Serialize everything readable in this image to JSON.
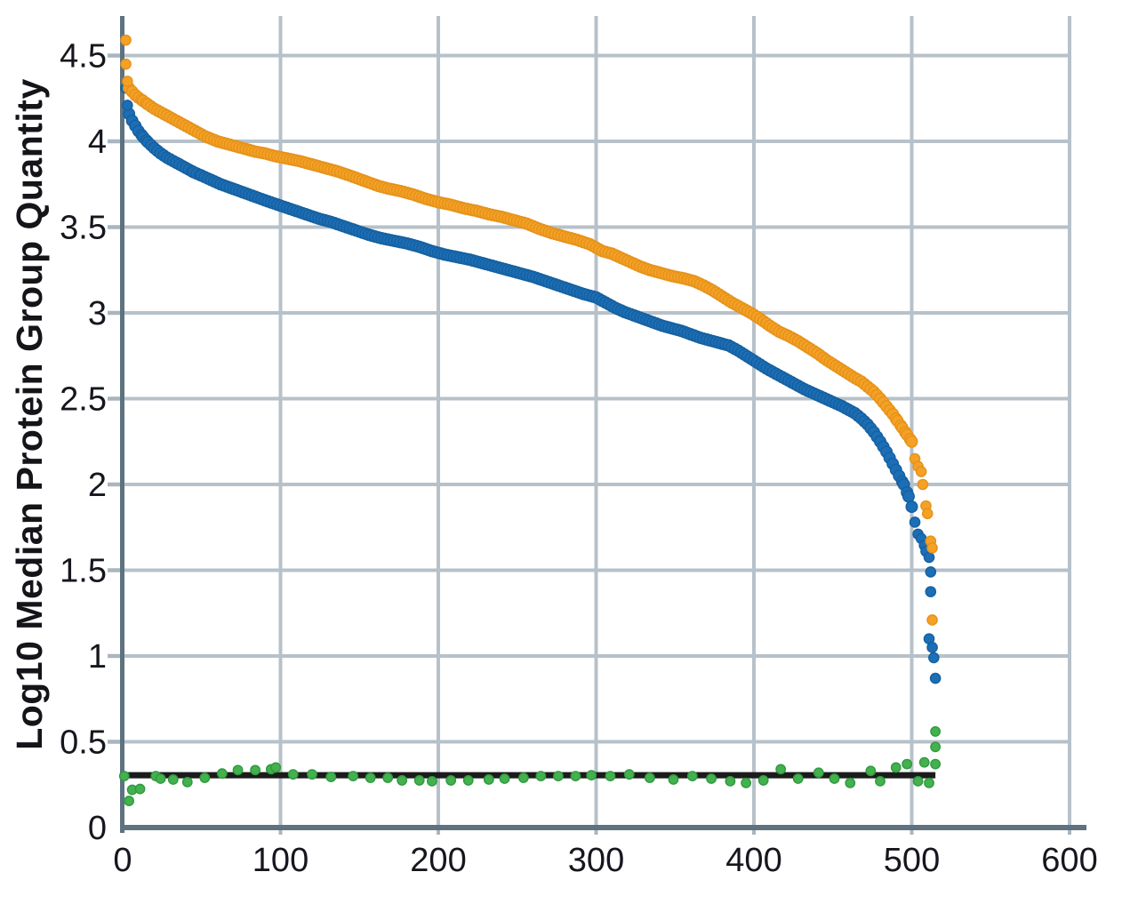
{
  "chart_data": {
    "type": "scatter",
    "title": "",
    "xlabel": "",
    "ylabel": "Log10 Median Protein Group Quantity",
    "xlim": [
      0,
      612
    ],
    "ylim": [
      0,
      4.73
    ],
    "grid": true,
    "legend": "none",
    "x_ticks": {
      "values": [
        0,
        100,
        200,
        300,
        400,
        500,
        600
      ],
      "labels": [
        "0",
        "100",
        "200",
        "300",
        "400",
        "500",
        "600"
      ]
    },
    "y_ticks": {
      "values": [
        0,
        0.5,
        1,
        1.5,
        2,
        2.5,
        3,
        3.5,
        4,
        4.5
      ],
      "labels": [
        "0",
        "0.5",
        "1",
        "1.5",
        "2",
        "2.5",
        "3",
        "3.5",
        "4",
        "4.5"
      ]
    },
    "colors": {
      "orange": "#F4A125",
      "orange_edge": "#E5921A",
      "blue": "#1C6EB6",
      "blue_edge": "#15609F",
      "green": "#44B14E",
      "green_edge": "#2E9A40",
      "reference_line": "#1B1B1B",
      "grid_line": "#B7C1C9",
      "tick_mark": "#A9B6BF",
      "axis_line": "#5E7280",
      "text": "#16161E"
    },
    "reference_line": {
      "y": 0.305,
      "x_start": 0,
      "x_end": 515
    },
    "series": [
      {
        "name": "orange-curve",
        "curve": [
          [
            4,
            4.31
          ],
          [
            6,
            4.29
          ],
          [
            8,
            4.27
          ],
          [
            10,
            4.255
          ],
          [
            13,
            4.235
          ],
          [
            16,
            4.215
          ],
          [
            20,
            4.19
          ],
          [
            24,
            4.17
          ],
          [
            28,
            4.15
          ],
          [
            32,
            4.13
          ],
          [
            36,
            4.11
          ],
          [
            40,
            4.09
          ],
          [
            44,
            4.07
          ],
          [
            48,
            4.05
          ],
          [
            52,
            4.03
          ],
          [
            56,
            4.015
          ],
          [
            60,
            4.0
          ],
          [
            66,
            3.985
          ],
          [
            72,
            3.97
          ],
          [
            78,
            3.955
          ],
          [
            84,
            3.94
          ],
          [
            90,
            3.93
          ],
          [
            96,
            3.915
          ],
          [
            104,
            3.9
          ],
          [
            112,
            3.885
          ],
          [
            120,
            3.865
          ],
          [
            128,
            3.845
          ],
          [
            136,
            3.825
          ],
          [
            144,
            3.8
          ],
          [
            150,
            3.78
          ],
          [
            156,
            3.76
          ],
          [
            162,
            3.74
          ],
          [
            168,
            3.725
          ],
          [
            176,
            3.71
          ],
          [
            184,
            3.69
          ],
          [
            192,
            3.665
          ],
          [
            200,
            3.645
          ],
          [
            208,
            3.63
          ],
          [
            216,
            3.61
          ],
          [
            224,
            3.595
          ],
          [
            232,
            3.575
          ],
          [
            240,
            3.56
          ],
          [
            248,
            3.54
          ],
          [
            256,
            3.52
          ],
          [
            264,
            3.49
          ],
          [
            272,
            3.465
          ],
          [
            280,
            3.445
          ],
          [
            288,
            3.425
          ],
          [
            296,
            3.4
          ],
          [
            304,
            3.36
          ],
          [
            310,
            3.345
          ],
          [
            316,
            3.32
          ],
          [
            322,
            3.295
          ],
          [
            328,
            3.27
          ],
          [
            334,
            3.25
          ],
          [
            340,
            3.235
          ],
          [
            348,
            3.215
          ],
          [
            356,
            3.2
          ],
          [
            362,
            3.185
          ],
          [
            368,
            3.16
          ],
          [
            374,
            3.13
          ],
          [
            380,
            3.095
          ],
          [
            386,
            3.06
          ],
          [
            392,
            3.03
          ],
          [
            398,
            3.0
          ],
          [
            404,
            2.965
          ],
          [
            410,
            2.925
          ],
          [
            416,
            2.89
          ],
          [
            422,
            2.865
          ],
          [
            428,
            2.835
          ],
          [
            434,
            2.8
          ],
          [
            440,
            2.765
          ],
          [
            446,
            2.725
          ],
          [
            452,
            2.69
          ],
          [
            458,
            2.655
          ],
          [
            464,
            2.62
          ],
          [
            468,
            2.6
          ],
          [
            472,
            2.57
          ],
          [
            476,
            2.54
          ],
          [
            480,
            2.5
          ],
          [
            484,
            2.455
          ],
          [
            488,
            2.41
          ],
          [
            491,
            2.37
          ],
          [
            494,
            2.33
          ],
          [
            497,
            2.29
          ],
          [
            500,
            2.25
          ]
        ],
        "isolated": [
          [
            2,
            4.59
          ],
          [
            2,
            4.45
          ],
          [
            3,
            4.35
          ],
          [
            502,
            2.15
          ],
          [
            504,
            2.105
          ],
          [
            506,
            2.075
          ],
          [
            507,
            2.0
          ],
          [
            509,
            1.875
          ],
          [
            510,
            1.83
          ],
          [
            512,
            1.67
          ],
          [
            513,
            1.63
          ],
          [
            513,
            1.21
          ]
        ]
      },
      {
        "name": "blue-curve",
        "curve": [
          [
            4,
            4.16
          ],
          [
            6,
            4.12
          ],
          [
            8,
            4.09
          ],
          [
            10,
            4.06
          ],
          [
            13,
            4.025
          ],
          [
            16,
            3.995
          ],
          [
            20,
            3.96
          ],
          [
            24,
            3.93
          ],
          [
            28,
            3.905
          ],
          [
            32,
            3.885
          ],
          [
            36,
            3.865
          ],
          [
            40,
            3.845
          ],
          [
            45,
            3.82
          ],
          [
            50,
            3.8
          ],
          [
            56,
            3.775
          ],
          [
            62,
            3.75
          ],
          [
            68,
            3.73
          ],
          [
            74,
            3.71
          ],
          [
            80,
            3.69
          ],
          [
            86,
            3.67
          ],
          [
            92,
            3.65
          ],
          [
            100,
            3.625
          ],
          [
            108,
            3.6
          ],
          [
            116,
            3.575
          ],
          [
            124,
            3.55
          ],
          [
            132,
            3.53
          ],
          [
            140,
            3.505
          ],
          [
            148,
            3.48
          ],
          [
            156,
            3.455
          ],
          [
            164,
            3.435
          ],
          [
            172,
            3.42
          ],
          [
            180,
            3.405
          ],
          [
            188,
            3.385
          ],
          [
            196,
            3.36
          ],
          [
            204,
            3.34
          ],
          [
            212,
            3.325
          ],
          [
            220,
            3.31
          ],
          [
            228,
            3.29
          ],
          [
            236,
            3.27
          ],
          [
            244,
            3.25
          ],
          [
            252,
            3.23
          ],
          [
            260,
            3.21
          ],
          [
            268,
            3.185
          ],
          [
            276,
            3.16
          ],
          [
            284,
            3.135
          ],
          [
            292,
            3.11
          ],
          [
            300,
            3.09
          ],
          [
            306,
            3.06
          ],
          [
            312,
            3.03
          ],
          [
            318,
            3.005
          ],
          [
            324,
            2.985
          ],
          [
            330,
            2.965
          ],
          [
            336,
            2.945
          ],
          [
            342,
            2.925
          ],
          [
            348,
            2.91
          ],
          [
            354,
            2.895
          ],
          [
            360,
            2.875
          ],
          [
            366,
            2.855
          ],
          [
            372,
            2.84
          ],
          [
            378,
            2.825
          ],
          [
            384,
            2.81
          ],
          [
            390,
            2.78
          ],
          [
            396,
            2.745
          ],
          [
            402,
            2.71
          ],
          [
            408,
            2.675
          ],
          [
            414,
            2.645
          ],
          [
            420,
            2.615
          ],
          [
            426,
            2.585
          ],
          [
            432,
            2.555
          ],
          [
            438,
            2.53
          ],
          [
            444,
            2.505
          ],
          [
            450,
            2.48
          ],
          [
            456,
            2.455
          ],
          [
            460,
            2.435
          ],
          [
            464,
            2.415
          ],
          [
            468,
            2.385
          ],
          [
            472,
            2.35
          ],
          [
            476,
            2.305
          ],
          [
            480,
            2.25
          ],
          [
            484,
            2.19
          ],
          [
            488,
            2.12
          ],
          [
            492,
            2.05
          ],
          [
            495,
            2.0
          ],
          [
            498,
            1.93
          ],
          [
            500,
            1.87
          ]
        ],
        "isolated": [
          [
            2,
            4.31
          ],
          [
            3,
            4.21
          ],
          [
            502,
            1.78
          ],
          [
            504,
            1.71
          ],
          [
            506,
            1.685
          ],
          [
            508,
            1.645
          ],
          [
            509,
            1.61
          ],
          [
            511,
            1.575
          ],
          [
            512,
            1.49
          ],
          [
            512,
            1.375
          ],
          [
            511,
            1.1
          ],
          [
            513,
            1.05
          ],
          [
            514,
            0.99
          ],
          [
            515,
            0.87
          ]
        ]
      },
      {
        "name": "green-points",
        "points": [
          [
            1,
            0.3
          ],
          [
            4,
            0.155
          ],
          [
            6,
            0.22
          ],
          [
            11,
            0.225
          ],
          [
            21,
            0.3
          ],
          [
            24,
            0.285
          ],
          [
            32,
            0.28
          ],
          [
            41,
            0.265
          ],
          [
            52,
            0.29
          ],
          [
            63,
            0.315
          ],
          [
            73,
            0.335
          ],
          [
            84,
            0.335
          ],
          [
            94,
            0.34
          ],
          [
            97,
            0.35
          ],
          [
            108,
            0.31
          ],
          [
            120,
            0.31
          ],
          [
            132,
            0.295
          ],
          [
            146,
            0.3
          ],
          [
            157,
            0.29
          ],
          [
            168,
            0.29
          ],
          [
            177,
            0.275
          ],
          [
            188,
            0.275
          ],
          [
            196,
            0.27
          ],
          [
            208,
            0.275
          ],
          [
            219,
            0.275
          ],
          [
            232,
            0.28
          ],
          [
            242,
            0.285
          ],
          [
            254,
            0.29
          ],
          [
            265,
            0.3
          ],
          [
            276,
            0.3
          ],
          [
            287,
            0.3
          ],
          [
            297,
            0.305
          ],
          [
            309,
            0.3
          ],
          [
            321,
            0.31
          ],
          [
            334,
            0.29
          ],
          [
            349,
            0.28
          ],
          [
            361,
            0.3
          ],
          [
            373,
            0.285
          ],
          [
            385,
            0.27
          ],
          [
            395,
            0.26
          ],
          [
            406,
            0.275
          ],
          [
            417,
            0.34
          ],
          [
            428,
            0.285
          ],
          [
            441,
            0.32
          ],
          [
            451,
            0.285
          ],
          [
            461,
            0.26
          ],
          [
            474,
            0.33
          ],
          [
            480,
            0.27
          ],
          [
            490,
            0.35
          ],
          [
            497,
            0.37
          ],
          [
            504,
            0.27
          ],
          [
            508,
            0.38
          ],
          [
            511,
            0.26
          ],
          [
            515,
            0.37
          ],
          [
            515,
            0.47
          ],
          [
            515,
            0.56
          ]
        ]
      }
    ]
  }
}
